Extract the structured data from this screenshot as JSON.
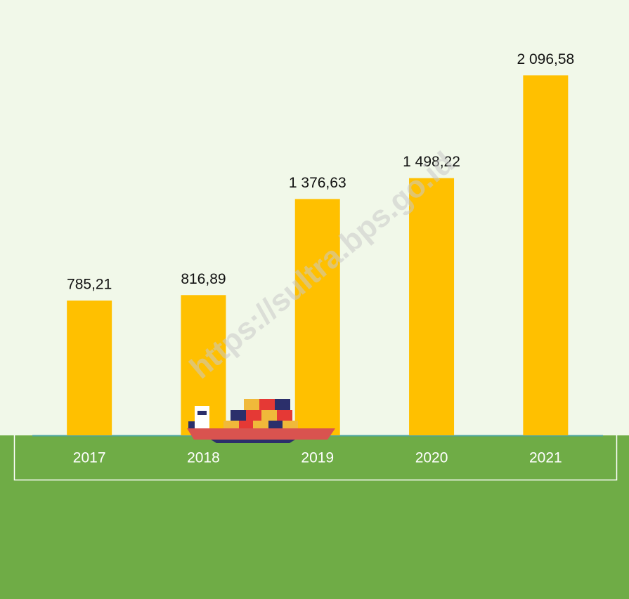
{
  "chart_data": {
    "type": "bar",
    "categories": [
      "2017",
      "2018",
      "2019",
      "2020",
      "2021"
    ],
    "values": [
      785.21,
      816.89,
      1376.63,
      1498.22,
      2096.58
    ],
    "value_labels": [
      "785,21",
      "816,89",
      "1 376,63",
      "1 498,22",
      "2 096,58"
    ],
    "color": "#ffc000",
    "ylim": [
      0,
      2500
    ],
    "watermark": "https://sultra.bps.go.id"
  }
}
